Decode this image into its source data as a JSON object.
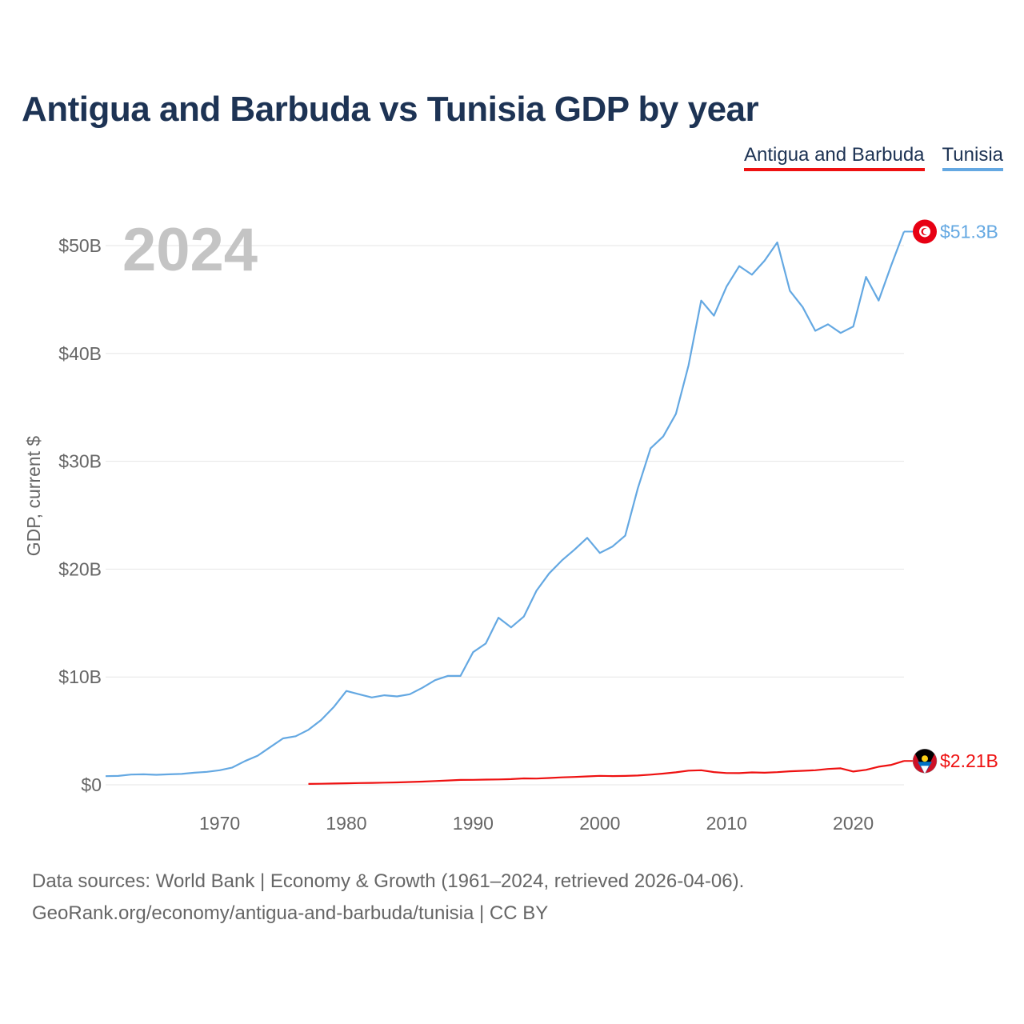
{
  "title": "Antigua and Barbuda vs Tunisia GDP by year",
  "colors": {
    "antigua": "#ee1111",
    "tunisia": "#64a8e2",
    "title": "#1d3354",
    "grid": "#e6e6e6",
    "axis_text": "#666666",
    "year_watermark": "#c4c4c4"
  },
  "legend": {
    "antigua_label": "Antigua and Barbuda",
    "tunisia_label": "Tunisia"
  },
  "year_label": "2024",
  "footer": {
    "line1": "Data sources: World Bank | Economy & Growth (1961–2024, retrieved 2026-04-06).",
    "line2": "GeoRank.org/economy/antigua-and-barbuda/tunisia | CC BY"
  },
  "chart_data": {
    "type": "line",
    "ylabel": "GDP, current $",
    "xlim": [
      1961,
      2024
    ],
    "ylim": [
      0,
      50
    ],
    "y_ticks": [
      0,
      10,
      20,
      30,
      40,
      50
    ],
    "y_tick_labels": [
      "$0",
      "$10B",
      "$20B",
      "$30B",
      "$40B",
      "$50B"
    ],
    "x_ticks": [
      1970,
      1980,
      1990,
      2000,
      2010,
      2020
    ],
    "x_tick_labels": [
      "1970",
      "1980",
      "1990",
      "2000",
      "2010",
      "2020"
    ],
    "grid": true,
    "legend_position": "top-right",
    "series": [
      {
        "name": "Antigua and Barbuda",
        "color": "#ee1111",
        "flag_icon": "antigua-and-barbuda-flag-icon",
        "end_label": "$2.21B",
        "x": [
          1977,
          1978,
          1979,
          1980,
          1981,
          1982,
          1983,
          1984,
          1985,
          1986,
          1987,
          1988,
          1989,
          1990,
          1991,
          1992,
          1993,
          1994,
          1995,
          1996,
          1997,
          1998,
          1999,
          2000,
          2001,
          2002,
          2003,
          2004,
          2005,
          2006,
          2007,
          2008,
          2009,
          2010,
          2011,
          2012,
          2013,
          2014,
          2015,
          2016,
          2017,
          2018,
          2019,
          2020,
          2021,
          2022,
          2023,
          2024
        ],
        "y": [
          0.08,
          0.1,
          0.12,
          0.14,
          0.16,
          0.18,
          0.2,
          0.22,
          0.26,
          0.3,
          0.35,
          0.4,
          0.45,
          0.46,
          0.48,
          0.5,
          0.53,
          0.59,
          0.58,
          0.63,
          0.69,
          0.73,
          0.78,
          0.83,
          0.81,
          0.82,
          0.86,
          0.94,
          1.04,
          1.16,
          1.31,
          1.35,
          1.18,
          1.09,
          1.08,
          1.15,
          1.12,
          1.17,
          1.25,
          1.3,
          1.35,
          1.47,
          1.53,
          1.23,
          1.39,
          1.68,
          1.85,
          2.21
        ]
      },
      {
        "name": "Tunisia",
        "color": "#64a8e2",
        "flag_icon": "tunisia-flag-icon",
        "end_label": "$51.3B",
        "x": [
          1961,
          1962,
          1963,
          1964,
          1965,
          1966,
          1967,
          1968,
          1969,
          1970,
          1971,
          1972,
          1973,
          1974,
          1975,
          1976,
          1977,
          1978,
          1979,
          1980,
          1981,
          1982,
          1983,
          1984,
          1985,
          1986,
          1987,
          1988,
          1989,
          1990,
          1991,
          1992,
          1993,
          1994,
          1995,
          1996,
          1997,
          1998,
          1999,
          2000,
          2001,
          2002,
          2003,
          2004,
          2005,
          2006,
          2007,
          2008,
          2009,
          2010,
          2011,
          2012,
          2013,
          2014,
          2015,
          2016,
          2017,
          2018,
          2019,
          2020,
          2021,
          2022,
          2023,
          2024
        ],
        "y": [
          0.8,
          0.82,
          0.95,
          0.97,
          0.93,
          0.97,
          1.01,
          1.12,
          1.2,
          1.35,
          1.6,
          2.2,
          2.7,
          3.5,
          4.3,
          4.5,
          5.1,
          6.0,
          7.2,
          8.7,
          8.4,
          8.1,
          8.3,
          8.2,
          8.4,
          9.0,
          9.7,
          10.1,
          10.1,
          12.3,
          13.1,
          15.5,
          14.6,
          15.6,
          18.0,
          19.6,
          20.8,
          21.8,
          22.9,
          21.5,
          22.1,
          23.1,
          27.5,
          31.2,
          32.3,
          34.4,
          38.9,
          44.9,
          43.5,
          46.2,
          48.1,
          47.3,
          48.6,
          50.3,
          45.8,
          44.3,
          42.1,
          42.7,
          41.9,
          42.5,
          47.1,
          44.9,
          48.2,
          51.3
        ]
      }
    ]
  }
}
